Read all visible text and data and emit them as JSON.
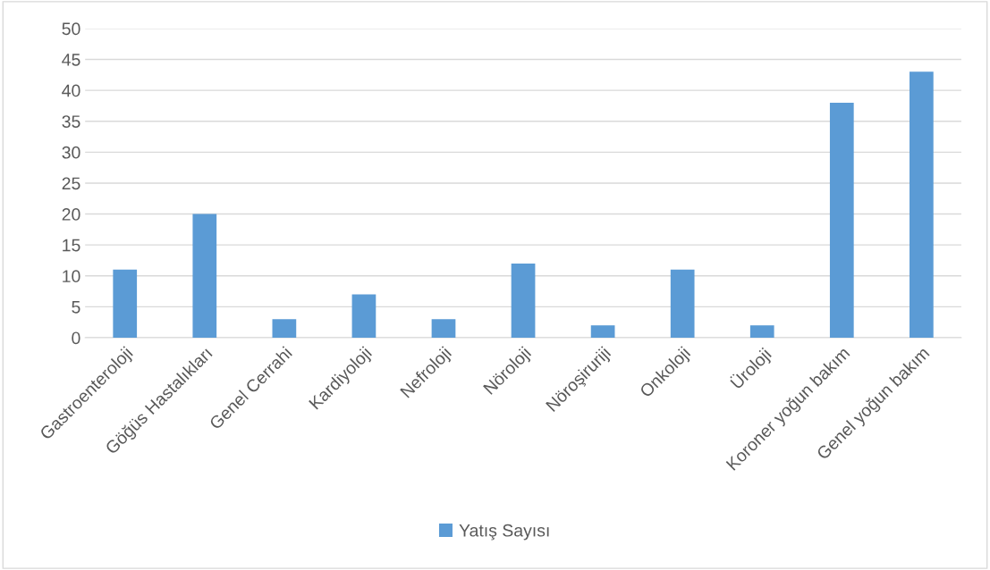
{
  "chart_data": {
    "type": "bar",
    "categories": [
      "Gastroenteroloji",
      "Göğüs Hastalıkları",
      "Genel Cerrahi",
      "Kardiyoloji",
      "Nefroloji",
      "Nöroloji",
      "Nöroşiruriji",
      "Onkoloji",
      "Üroloji",
      "Koroner yoğun bakım",
      "Genel yoğun bakım"
    ],
    "series": [
      {
        "name": "Yatış Sayısı",
        "color": "#5b9bd5",
        "values": [
          11,
          20,
          3,
          7,
          3,
          12,
          2,
          11,
          2,
          38,
          43
        ]
      }
    ],
    "ylim": [
      0,
      50
    ],
    "yticks": [
      0,
      5,
      10,
      15,
      20,
      25,
      30,
      35,
      40,
      45,
      50
    ],
    "grid": "y",
    "legend": "bottom"
  }
}
